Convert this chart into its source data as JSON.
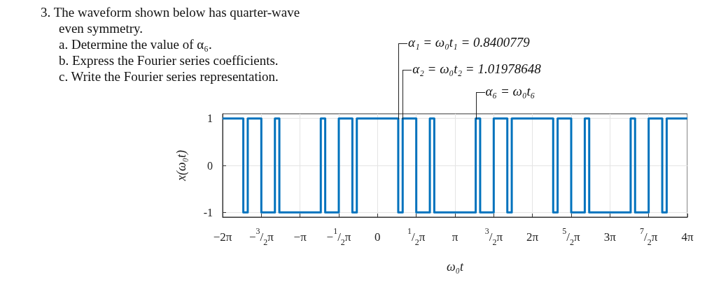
{
  "chart_data": {
    "type": "step",
    "title": "3. The waveform shown below has quarter-wave even symmetry.",
    "annotations": [
      "a. Determine the value of α₆.",
      "b. Express the Fourier series coefficients.",
      "c. Write the Fourier series representation.",
      {
        "text": "α₁ = ω₀t₁ = 0.8400779",
        "x": 0.8401,
        "y": 1
      },
      {
        "text": "α₂ = ω₀t₂ = 1.01978648",
        "x": 1.0198,
        "y": 1
      },
      {
        "text": "α₆ = ω₀t₆",
        "x": 3.9817,
        "y": 1
      }
    ],
    "xlabel": "ω₀t",
    "ylabel": "x(ω₀t)",
    "x": [
      -6.2832,
      -5.4431,
      -5.2634,
      -4.7124,
      -4.1614,
      -3.9817,
      -2.3015,
      -2.1218,
      -1.5708,
      -1.0198,
      -0.8401,
      0.8401,
      1.0198,
      1.5708,
      2.1218,
      2.3015,
      3.9817,
      4.1614,
      4.7124,
      5.2634,
      5.4432,
      7.1233,
      7.303,
      7.854,
      8.405,
      8.5847,
      10.2649,
      10.4446,
      10.9956,
      11.5466,
      11.7264,
      12.5664
    ],
    "series": [
      {
        "color": "#0072bd",
        "values": [
          1,
          -1,
          1,
          -1,
          1,
          -1,
          1,
          -1,
          1,
          -1,
          1,
          -1,
          1,
          -1,
          1,
          -1,
          1,
          -1,
          1,
          -1,
          1,
          -1,
          1,
          -1,
          1,
          -1,
          1,
          -1,
          1,
          -1,
          1,
          1
        ]
      }
    ],
    "xlim": [
      -6.2832,
      12.5664
    ],
    "xticks": [
      {
        "value": -6.2832,
        "label": "−2π"
      },
      {
        "value": -4.7124,
        "label": "−$^{3}$/$_{2}$π"
      },
      {
        "value": -3.1416,
        "label": "−π"
      },
      {
        "value": -1.5708,
        "label": "−$^{1}$/$_{2}$π"
      },
      0,
      {
        "value": 1.5708,
        "label": "$^{1}$/$_{2}$π"
      },
      {
        "value": 3.1416,
        "label": "π"
      },
      {
        "value": 4.7124,
        "label": "$^{3}$/$_{2}$π"
      },
      {
        "value": 6.2832,
        "label": "2π"
      },
      {
        "value": 7.854,
        "label": "$^{5}$/$_{2}$π"
      },
      {
        "value": 9.4248,
        "label": "3π"
      },
      {
        "value": 10.9956,
        "label": "$^{7}$/$_{2}$π"
      },
      {
        "value": 12.5664,
        "label": "4π"
      }
    ],
    "ylim": [
      -1.1,
      1.1
    ],
    "yticks": [
      -1,
      0,
      1
    ],
    "grid": true,
    "marker": "none",
    "line_style": "solid"
  }
}
